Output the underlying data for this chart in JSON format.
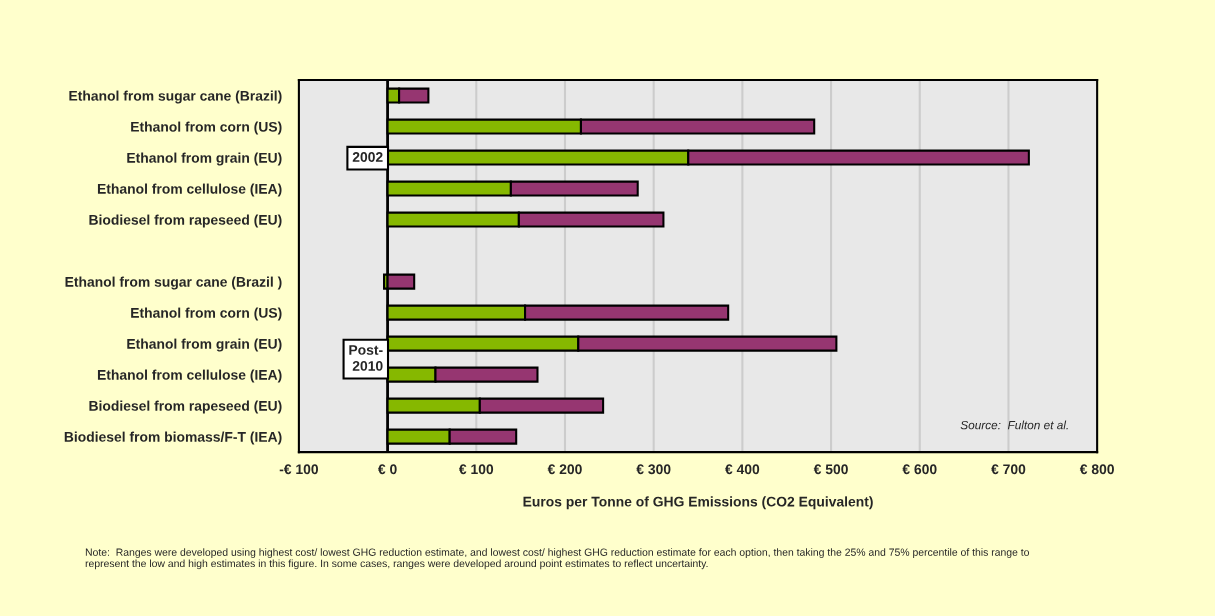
{
  "chart_data": {
    "type": "bar",
    "orientation": "horizontal",
    "stacked": true,
    "categories": [
      "Ethanol from sugar cane (Brazil)",
      "Ethanol from corn (US)",
      "Ethanol from grain (EU)",
      "Ethanol from cellulose (IEA)",
      "Biodiesel from rapeseed (EU)",
      null,
      "Ethanol from sugar cane (Brazil )",
      "Ethanol from corn (US)",
      "Ethanol from grain (EU)",
      "Ethanol from cellulose (IEA)",
      "Biodiesel from rapeseed (EU)",
      "Biodiesel from biomass/F-T (IEA)"
    ],
    "series": [
      {
        "color": "#86b800",
        "values": [
          13,
          218,
          339,
          139,
          148,
          null,
          -4,
          155,
          215,
          54,
          104,
          70
        ]
      },
      {
        "color": "#963671",
        "values": [
          33,
          263,
          384,
          143,
          163,
          null,
          30,
          229,
          291,
          115,
          139,
          75
        ]
      }
    ],
    "xlabel": "Euros per Tonne of GHG Emissions (CO2 Equivalent)",
    "xlim": [
      -100,
      800
    ],
    "xticks": [
      {
        "value": -100,
        "label": "-€ 100"
      },
      {
        "value": 0,
        "label": "€ 0"
      },
      {
        "value": 100,
        "label": "€ 100"
      },
      {
        "value": 200,
        "label": "€ 200"
      },
      {
        "value": 300,
        "label": "€ 300"
      },
      {
        "value": 400,
        "label": "€ 400"
      },
      {
        "value": 500,
        "label": "€ 500"
      },
      {
        "value": 600,
        "label": "€ 600"
      },
      {
        "value": 700,
        "label": "€ 700"
      },
      {
        "value": 800,
        "label": "€ 800"
      }
    ],
    "grid": "x",
    "legend": false,
    "annotations": [
      "2002",
      "Post-\n2010",
      "Source:  Fulton et al.",
      "Note:  Ranges were developed using highest cost/ lowest GHG reduction estimate, and lowest cost/ highest GHG reduction estimate for each option, then taking the 25% and 75% percentile of this range to represent the low and high estimates in this figure. In some cases, ranges were developed around point estimates to reflect uncertainty."
    ]
  }
}
